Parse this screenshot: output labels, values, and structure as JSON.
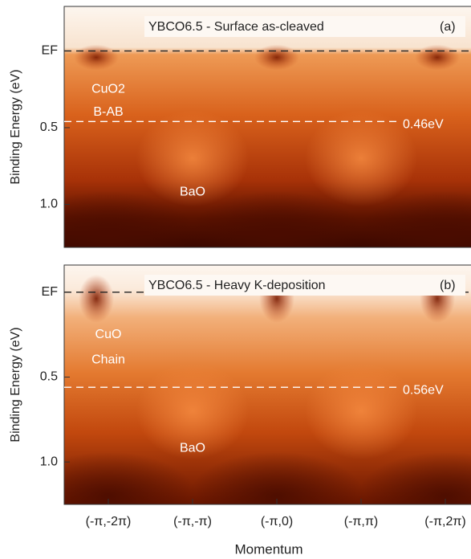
{
  "chart_data": [
    {
      "type": "image",
      "title": "YBCO6.5 - Surface as-cleaved",
      "panel_label": "(a)",
      "ylabel": "Binding Energy (eV)",
      "ylim": [
        -0.29,
        1.28
      ],
      "yticks": [
        {
          "value": 0,
          "label": "EF"
        },
        0.5,
        {
          "value": 1,
          "label": "1.0"
        }
      ],
      "marker_line": {
        "value": 0.46,
        "label": "0.46eV"
      },
      "annotations": [
        "CuO2",
        "B-AB",
        "BaO"
      ]
    },
    {
      "type": "image",
      "title": "YBCO6.5 - Heavy K-deposition",
      "panel_label": "(b)",
      "ylabel": "Binding Energy (eV)",
      "ylim": [
        -0.16,
        1.25
      ],
      "yticks": [
        {
          "value": 0,
          "label": "EF"
        },
        0.5,
        {
          "value": 1,
          "label": "1.0"
        }
      ],
      "marker_line": {
        "value": 0.56,
        "label": "0.56eV"
      },
      "annotations": [
        "CuO",
        "Chain",
        "BaO"
      ],
      "categories": [
        "(-π,-2π)",
        "(-π,-π)",
        "(-π,0)",
        "(-π,π)",
        "(-π,2π)"
      ],
      "xlabel": "Momentum"
    }
  ]
}
